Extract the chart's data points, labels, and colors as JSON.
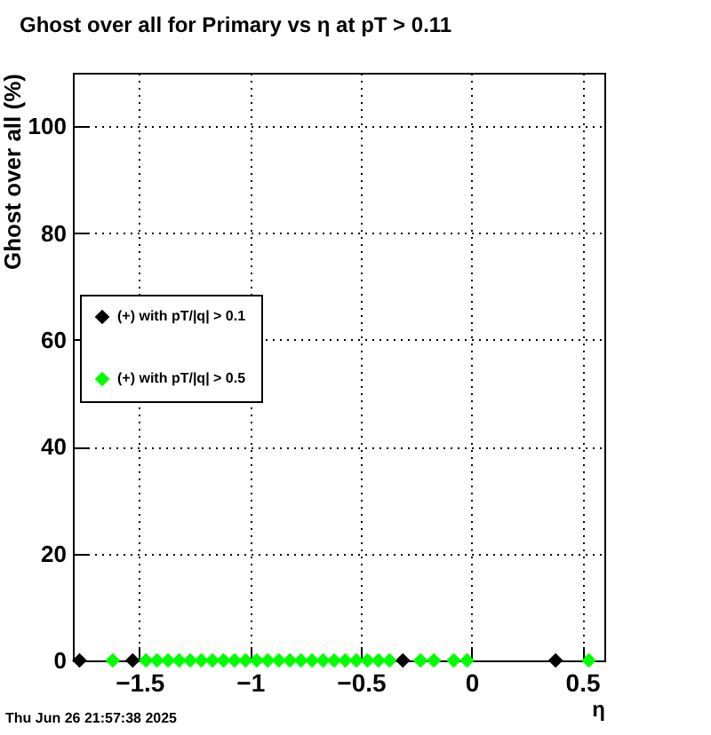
{
  "chart_data": {
    "type": "scatter",
    "title": "Ghost over all for Primary vs η at pT > 0.11",
    "xlabel": "η",
    "ylabel": "Ghost over all (%)",
    "annotations": [
      "Thu Jun 26 21:57:38 2025"
    ],
    "series": [
      {
        "name": "(+) with pT/|q| > 0.1",
        "color": "#000000",
        "x": [
          -1.77,
          -1.53,
          -0.31,
          0.38
        ],
        "values": [
          0,
          0,
          0,
          0
        ]
      },
      {
        "name": "(+) with pT/|q| > 0.5",
        "color": "#00ff00",
        "x": [
          -1.62,
          -1.47,
          -1.42,
          -1.37,
          -1.32,
          -1.27,
          -1.22,
          -1.17,
          -1.12,
          -1.07,
          -1.02,
          -0.97,
          -0.92,
          -0.87,
          -0.82,
          -0.77,
          -0.72,
          -0.67,
          -0.62,
          -0.57,
          -0.52,
          -0.47,
          -0.42,
          -0.37,
          -0.23,
          -0.17,
          -0.08,
          -0.02,
          0.53
        ],
        "values": [
          0,
          0,
          0,
          0,
          0,
          0,
          0,
          0,
          0,
          0,
          0,
          0,
          0,
          0,
          0,
          0,
          0,
          0,
          0,
          0,
          0,
          0,
          0,
          0,
          0,
          0,
          0,
          0,
          0
        ]
      }
    ],
    "xlim": [
      -1.8,
      0.6
    ],
    "xticks": [
      -1.5,
      -1,
      -0.5,
      0,
      0.5
    ],
    "ylim": [
      0,
      110
    ],
    "yticks": [
      0,
      20,
      40,
      60,
      80,
      100
    ],
    "grid": true,
    "legend": "left",
    "marker": "diamond"
  }
}
